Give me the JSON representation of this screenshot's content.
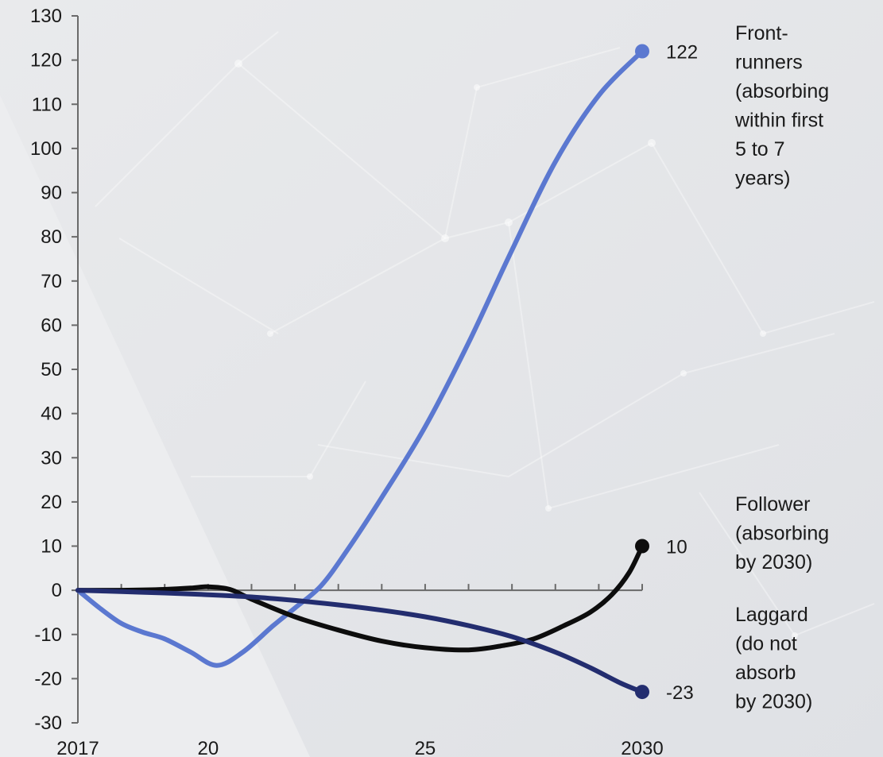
{
  "chart_data": {
    "type": "line",
    "title": "",
    "xlabel": "",
    "ylabel": "",
    "xlim": [
      2017,
      2030
    ],
    "ylim": [
      -30,
      130
    ],
    "y_ticks": [
      130,
      120,
      110,
      100,
      90,
      80,
      70,
      60,
      50,
      40,
      30,
      20,
      10,
      0,
      -10,
      -20,
      -30
    ],
    "x_ticks": [
      2017,
      2018,
      2019,
      2020,
      2021,
      2022,
      2023,
      2024,
      2025,
      2026,
      2027,
      2028,
      2029,
      2030
    ],
    "x_tick_labels": [
      {
        "x": 2017,
        "label": "2017"
      },
      {
        "x": 2020,
        "label": "20"
      },
      {
        "x": 2025,
        "label": "25"
      },
      {
        "x": 2030,
        "label": "2030"
      }
    ],
    "grid": false,
    "legend": "right",
    "series": [
      {
        "key": "front",
        "name": [
          "Front-",
          "runners",
          "(absorbing",
          "within first",
          "5 to 7",
          "years)"
        ],
        "color": "#5b78d0",
        "end_label": "122",
        "points": [
          [
            2017,
            0
          ],
          [
            2017.5,
            -4
          ],
          [
            2018,
            -7.5
          ],
          [
            2018.5,
            -9.5
          ],
          [
            2019,
            -11
          ],
          [
            2019.6,
            -14
          ],
          [
            2020.2,
            -17
          ],
          [
            2020.8,
            -14
          ],
          [
            2021.5,
            -8
          ],
          [
            2022,
            -4
          ],
          [
            2022.6,
            1
          ],
          [
            2023.2,
            9
          ],
          [
            2024,
            21
          ],
          [
            2025,
            37
          ],
          [
            2026,
            56
          ],
          [
            2027,
            77
          ],
          [
            2028,
            97
          ],
          [
            2029,
            112
          ],
          [
            2030,
            122
          ]
        ]
      },
      {
        "key": "follower",
        "name": [
          "Follower",
          "(absorbing",
          "by 2030)"
        ],
        "color": "#0d0d0d",
        "end_label": "10",
        "points": [
          [
            2017,
            0
          ],
          [
            2018,
            0
          ],
          [
            2019,
            0.2
          ],
          [
            2019.6,
            0.5
          ],
          [
            2020,
            0.8
          ],
          [
            2020.5,
            0.2
          ],
          [
            2021,
            -2
          ],
          [
            2022,
            -6
          ],
          [
            2023,
            -9
          ],
          [
            2024,
            -11.5
          ],
          [
            2025,
            -13
          ],
          [
            2026,
            -13.5
          ],
          [
            2026.8,
            -12.5
          ],
          [
            2027.5,
            -11
          ],
          [
            2028.2,
            -8
          ],
          [
            2028.8,
            -5
          ],
          [
            2029.3,
            -1
          ],
          [
            2029.7,
            4
          ],
          [
            2030,
            10
          ]
        ]
      },
      {
        "key": "laggard",
        "name": [
          "Laggard",
          "(do not",
          "absorb",
          "by 2030)"
        ],
        "color": "#232d6f",
        "end_label": "-23",
        "points": [
          [
            2017,
            0
          ],
          [
            2018,
            -0.3
          ],
          [
            2019,
            -0.6
          ],
          [
            2020,
            -1
          ],
          [
            2021,
            -1.5
          ],
          [
            2022,
            -2.3
          ],
          [
            2023,
            -3.3
          ],
          [
            2024,
            -4.5
          ],
          [
            2025,
            -6
          ],
          [
            2026,
            -8
          ],
          [
            2027,
            -10.5
          ],
          [
            2028,
            -14
          ],
          [
            2028.8,
            -17.5
          ],
          [
            2029.5,
            -21
          ],
          [
            2030,
            -23
          ]
        ]
      }
    ]
  }
}
